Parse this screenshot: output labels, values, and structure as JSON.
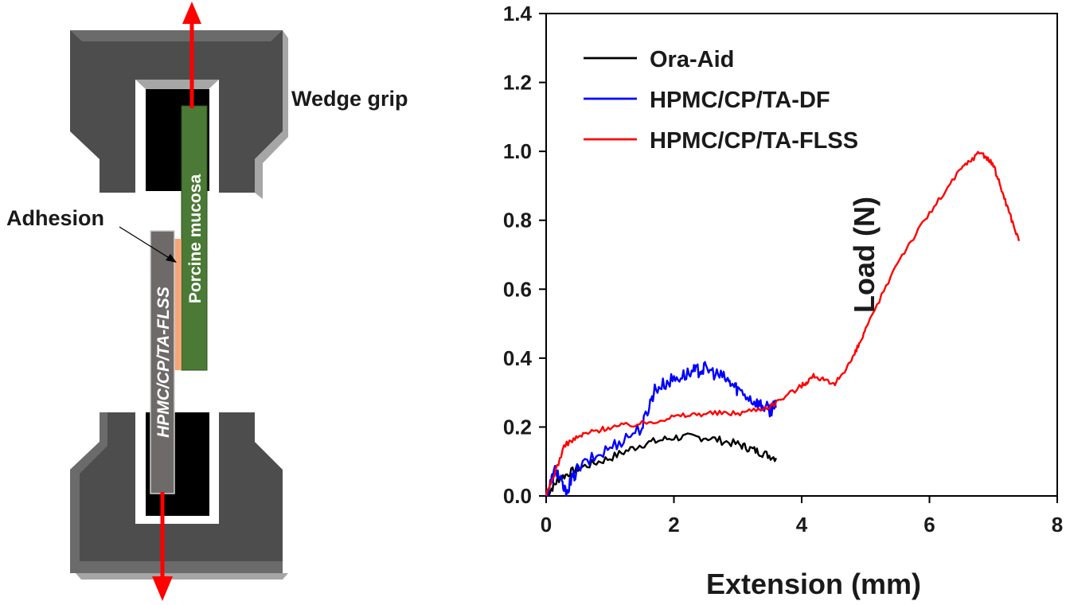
{
  "schematic": {
    "wedge_grip_label": "Wedge grip",
    "adhesion_label": "Adhesion",
    "mucosa_label": "Porcine mucosa",
    "film_label": "HPMC/CP/TA-FLSS",
    "colors": {
      "grip_dark": "#4d4d4d",
      "grip_mid": "#6b6b6b",
      "grip_light": "#a6a6a6",
      "jaw_black": "#000000",
      "mucosa_green": "#4a7a35",
      "film_gray": "#6e6a6a",
      "adhesion_orange": "#f4a67a",
      "arrow_red": "#ff0000"
    }
  },
  "chart_data": {
    "type": "line",
    "xlabel": "Extension (mm)",
    "ylabel": "Load (N)",
    "xlim": [
      0,
      8
    ],
    "ylim": [
      0,
      1.4
    ],
    "xticks": [
      "0",
      "2",
      "4",
      "6",
      "8"
    ],
    "yticks": [
      "0.0",
      "0.2",
      "0.4",
      "0.6",
      "0.8",
      "1.0",
      "1.2",
      "1.4"
    ],
    "grid": false,
    "legend_position": "top-left",
    "series": [
      {
        "name": "Ora-Aid",
        "color": "#000000",
        "noise": 0.012,
        "x": [
          0,
          0.2,
          0.5,
          1.0,
          1.5,
          2.0,
          2.5,
          3.0,
          3.3,
          3.6
        ],
        "y": [
          0,
          0.05,
          0.08,
          0.11,
          0.15,
          0.17,
          0.17,
          0.15,
          0.13,
          0.11
        ]
      },
      {
        "name": "HPMC/CP/TA-DF",
        "color": "#0000ff",
        "noise": 0.02,
        "x": [
          0,
          0.15,
          0.3,
          0.5,
          1.0,
          1.5,
          1.7,
          2.0,
          2.3,
          2.5,
          2.8,
          3.0,
          3.3,
          3.5,
          3.6
        ],
        "y": [
          0,
          0.08,
          0.01,
          0.08,
          0.14,
          0.2,
          0.31,
          0.34,
          0.36,
          0.37,
          0.34,
          0.31,
          0.27,
          0.25,
          0.26
        ]
      },
      {
        "name": "HPMC/CP/TA-FLSS",
        "color": "#ff0000",
        "noise": 0.008,
        "x": [
          0,
          0.3,
          0.6,
          1.0,
          1.5,
          2.0,
          2.5,
          3.0,
          3.5,
          4.0,
          4.2,
          4.5,
          4.8,
          5.0,
          5.5,
          6.0,
          6.5,
          6.8,
          7.0,
          7.2,
          7.4
        ],
        "y": [
          0,
          0.15,
          0.18,
          0.2,
          0.21,
          0.23,
          0.24,
          0.24,
          0.26,
          0.32,
          0.35,
          0.32,
          0.4,
          0.48,
          0.68,
          0.82,
          0.95,
          1.0,
          0.96,
          0.85,
          0.74
        ]
      }
    ]
  }
}
